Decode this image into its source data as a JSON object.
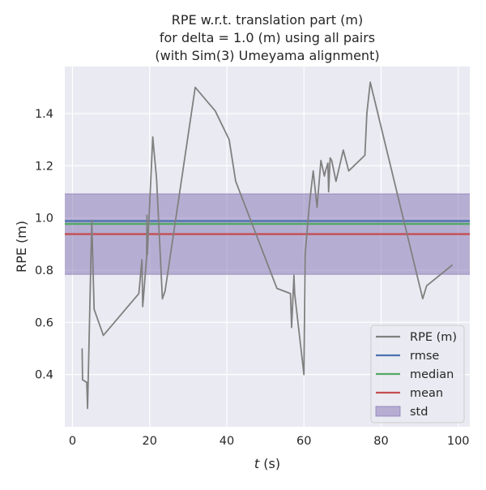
{
  "chart_data": {
    "type": "line",
    "title_lines": [
      "RPE w.r.t. translation part (m)",
      "for delta = 1.0 (m) using all pairs",
      "(with Sim(3) Umeyama alignment)"
    ],
    "xlabel": {
      "var": "t",
      "unit": " (s)"
    },
    "ylabel": "RPE (m)",
    "xlim": [
      -2.0,
      103.0
    ],
    "ylim": [
      0.2,
      1.58
    ],
    "x_ticks": [
      0,
      20,
      40,
      60,
      80,
      100
    ],
    "y_ticks": [
      0.4,
      0.6,
      0.8,
      1.0,
      1.2,
      1.4
    ],
    "y_tick_labels": [
      "0.4",
      "0.6",
      "0.8",
      "1.0",
      "1.2",
      "1.4"
    ],
    "grid": true,
    "background": "#eaeaf2",
    "legend_position": "lower right",
    "legend": [
      "RPE (m)",
      "rmse",
      "median",
      "mean",
      "std"
    ],
    "series": [
      {
        "name": "RPE (m)",
        "color": "#808080",
        "x": [
          2.5,
          2.6,
          3.7,
          3.9,
          5.0,
          5.6,
          8.0,
          17.2,
          18.0,
          18.2,
          19.2,
          19.3,
          19.4,
          20.8,
          21.8,
          23.3,
          24.0,
          31.8,
          37.0,
          40.6,
          42.3,
          53.0,
          56.5,
          56.8,
          57.4,
          57.6,
          60.0,
          60.3,
          61.4,
          62.4,
          63.4,
          64.4,
          65.3,
          65.6,
          66.2,
          66.4,
          66.8,
          67.2,
          68.3,
          70.2,
          71.6,
          75.8,
          76.3,
          77.2,
          90.8,
          91.8,
          98.5
        ],
        "y": [
          0.5,
          0.38,
          0.37,
          0.27,
          0.99,
          0.65,
          0.55,
          0.71,
          0.84,
          0.66,
          0.85,
          1.01,
          0.86,
          1.31,
          1.15,
          0.69,
          0.72,
          1.5,
          1.41,
          1.3,
          1.14,
          0.73,
          0.71,
          0.58,
          0.78,
          0.71,
          0.4,
          0.86,
          1.05,
          1.18,
          1.04,
          1.22,
          1.16,
          1.18,
          1.21,
          1.1,
          1.23,
          1.22,
          1.14,
          1.26,
          1.18,
          1.24,
          1.4,
          1.52,
          0.69,
          0.74,
          0.82
        ]
      }
    ],
    "stats": {
      "rmse": {
        "value": 0.988,
        "color": "#4c72b0"
      },
      "median": {
        "value": 0.977,
        "color": "#55a868"
      },
      "mean": {
        "value": 0.938,
        "color": "#c44e52"
      },
      "std": {
        "low": 0.784,
        "high": 1.092,
        "color": "#8172b2",
        "alpha": 0.5
      }
    }
  }
}
